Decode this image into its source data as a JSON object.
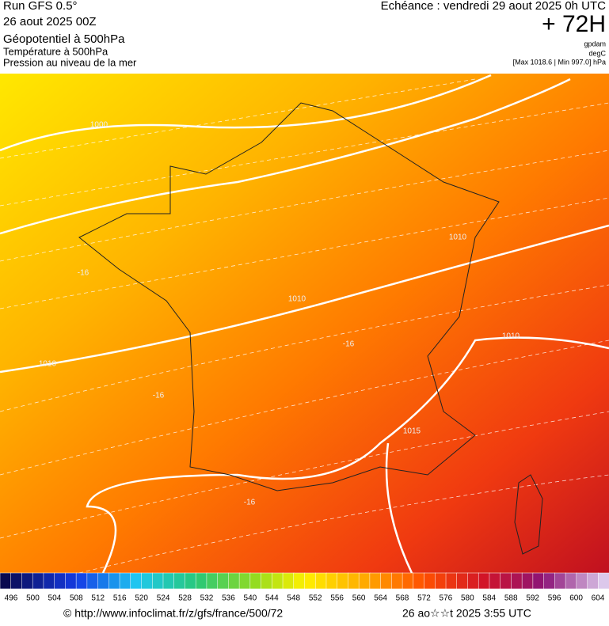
{
  "header": {
    "left": [
      "Run GFS 0.5°",
      "26 aout 2025 00Z",
      "Géopotentiel à 500hPa",
      "Température à 500hPa",
      "Pression au niveau de la mer"
    ],
    "right": {
      "title": "Echéance : vendredi 29 aout 2025 0h UTC",
      "lead": "+ 72H",
      "units": [
        "gpdam",
        "degC",
        "[Max 1018.6 | Min 997.0] hPa"
      ]
    }
  },
  "map": {
    "contour_labels": [
      "1000",
      "1010",
      "1010",
      "1010",
      "1010",
      "1015",
      "-16",
      "-16",
      "-16",
      "-16"
    ]
  },
  "legend": {
    "labels": [
      "496",
      "500",
      "504",
      "508",
      "512",
      "516",
      "520",
      "524",
      "528",
      "532",
      "536",
      "540",
      "544",
      "548",
      "552",
      "556",
      "560",
      "564",
      "568",
      "572",
      "576",
      "580",
      "584",
      "588",
      "592",
      "596",
      "600",
      "604"
    ]
  },
  "footer": {
    "source": "© http://www.infoclimat.fr/z/gfs/france/500/72",
    "date": "26 ao☆☆t 2025  3:55 UTC"
  }
}
